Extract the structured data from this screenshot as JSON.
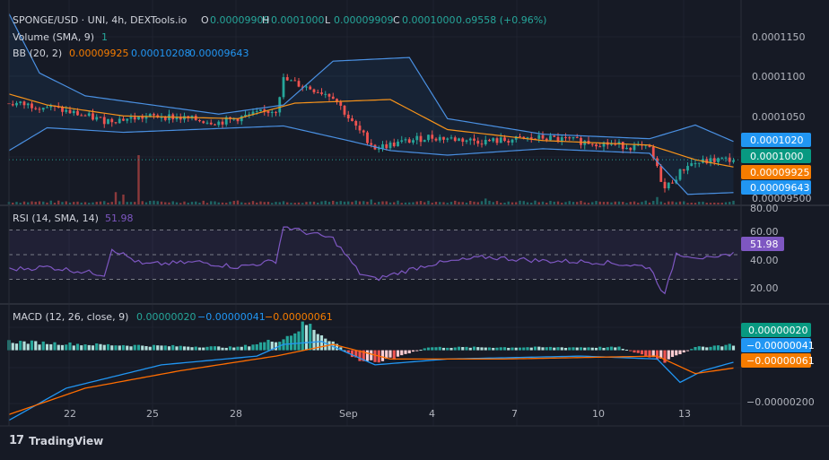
{
  "header": {
    "symbol": "SPONGE/USD · UNI, 4h, DEXTools.io",
    "o_label": "O",
    "o_value": "0.00009909",
    "h_label": "H",
    "h_value": "0.0001000",
    "l_label": "L",
    "l_value": "0.00009909",
    "c_label": "C",
    "c_value": "0.0001000",
    "change": "0.o9558 (+0.96%)",
    "volume_label": "Volume (SMA, 9)",
    "volume_value": "1",
    "bb_label": "BB (20, 2)",
    "bb_basis": "0.00009925",
    "bb_upper": "0.00010208",
    "bb_lower": "0.00009643"
  },
  "colors": {
    "background": "#161a25",
    "up": "#26a69a",
    "down": "#ef5350",
    "bb_band": "#4a90e2",
    "bb_basis": "#f7931a",
    "rsi": "#7e57c2",
    "macd_line": "#2196f3",
    "signal_line": "#ff6d00",
    "hist_up": "#26a69a",
    "hist_up_light": "#b2dfdb",
    "hist_down": "#ef5350",
    "hist_down_light": "#ffcdd2"
  },
  "price_axis": {
    "ticks": [
      "0.0001150",
      "0.0001100",
      "0.0001050",
      "0.00009500"
    ],
    "badges": [
      {
        "text": "0.0001020",
        "color": "#2196f3"
      },
      {
        "text": "0.0001000",
        "color": "#089981"
      },
      {
        "text": "0.00009925",
        "color": "#f57c00"
      },
      {
        "text": "0.00009643",
        "color": "#2196f3"
      }
    ]
  },
  "rsi": {
    "label": "RSI (14, SMA, 14)",
    "value": "51.98",
    "ticks": [
      "80.00",
      "60.00",
      "40.00",
      "20.00"
    ],
    "badge": "51.98"
  },
  "macd": {
    "label": "MACD (12, 26, close, 9)",
    "hist": "0.00000020",
    "macd": "−0.00000041",
    "signal": "−0.00000061",
    "tick": "−0.00000200",
    "badges": [
      {
        "text": "0.00000020",
        "color": "#089981"
      },
      {
        "text": "−0.00000041",
        "color": "#2196f3"
      },
      {
        "text": "−0.00000061",
        "color": "#f57c00"
      }
    ]
  },
  "x_axis": {
    "labels": [
      "22",
      "25",
      "28",
      "Sep",
      "4",
      "7",
      "10",
      "13"
    ]
  },
  "watermark": {
    "logo": "17",
    "text": "TradingView"
  },
  "chart_data": {
    "type": "candlestick",
    "title": "SPONGE/USD · UNI, 4h, DEXTools.io",
    "x_axis_labels": [
      "22",
      "25",
      "28",
      "Sep",
      "4",
      "7",
      "10",
      "13"
    ],
    "price_range": [
      9.5e-05,
      0.0001175
    ],
    "price_key_points": [
      {
        "x": 0,
        "close": 0.0001062
      },
      {
        "x": 10,
        "close": 0.0001058
      },
      {
        "x": 25,
        "close": 0.0001043
      },
      {
        "x": 40,
        "close": 0.0001048
      },
      {
        "x": 55,
        "close": 0.0001041
      },
      {
        "x": 70,
        "close": 0.0001055
      },
      {
        "x": 72,
        "close": 0.0001088
      },
      {
        "x": 85,
        "close": 0.000107
      },
      {
        "x": 90,
        "close": 0.000104
      },
      {
        "x": 96,
        "close": 0.0001013
      },
      {
        "x": 110,
        "close": 0.0001025
      },
      {
        "x": 125,
        "close": 0.000102
      },
      {
        "x": 140,
        "close": 0.0001024
      },
      {
        "x": 158,
        "close": 0.0001017
      },
      {
        "x": 168,
        "close": 0.0001012
      },
      {
        "x": 172,
        "close": 9.68e-05
      },
      {
        "x": 178,
        "close": 9.95e-05
      },
      {
        "x": 186,
        "close": 0.0001
      }
    ],
    "bollinger_upper": [
      {
        "x": 0,
        "v": 0.000116
      },
      {
        "x": 8,
        "v": 0.0001095
      },
      {
        "x": 20,
        "v": 0.000107
      },
      {
        "x": 55,
        "v": 0.000105
      },
      {
        "x": 72,
        "v": 0.000106
      },
      {
        "x": 85,
        "v": 0.0001108
      },
      {
        "x": 105,
        "v": 0.0001112
      },
      {
        "x": 115,
        "v": 0.0001045
      },
      {
        "x": 140,
        "v": 0.0001028
      },
      {
        "x": 168,
        "v": 0.0001023
      },
      {
        "x": 180,
        "v": 0.0001038
      },
      {
        "x": 190,
        "v": 0.000102
      }
    ],
    "bollinger_basis": [
      {
        "x": 0,
        "v": 0.0001072
      },
      {
        "x": 10,
        "v": 0.000106
      },
      {
        "x": 30,
        "v": 0.0001048
      },
      {
        "x": 60,
        "v": 0.0001045
      },
      {
        "x": 75,
        "v": 0.0001062
      },
      {
        "x": 100,
        "v": 0.0001066
      },
      {
        "x": 115,
        "v": 0.0001033
      },
      {
        "x": 140,
        "v": 0.0001021
      },
      {
        "x": 168,
        "v": 0.0001016
      },
      {
        "x": 180,
        "v": 0.0001
      },
      {
        "x": 190,
        "v": 9.92e-05
      }
    ],
    "bollinger_lower": [
      {
        "x": 0,
        "v": 0.000101
      },
      {
        "x": 10,
        "v": 0.0001035
      },
      {
        "x": 30,
        "v": 0.000103
      },
      {
        "x": 60,
        "v": 0.0001035
      },
      {
        "x": 72,
        "v": 0.0001037
      },
      {
        "x": 90,
        "v": 0.000102
      },
      {
        "x": 100,
        "v": 0.000101
      },
      {
        "x": 115,
        "v": 0.0001005
      },
      {
        "x": 140,
        "v": 0.0001012
      },
      {
        "x": 168,
        "v": 0.0001007
      },
      {
        "x": 178,
        "v": 9.62e-05
      },
      {
        "x": 190,
        "v": 9.64e-05
      }
    ],
    "volume_spikes": [
      {
        "x": 34,
        "v": 1.0
      },
      {
        "x": 28,
        "v": 0.25
      },
      {
        "x": 30,
        "v": 0.2
      },
      {
        "x": 60,
        "v": 0.08
      },
      {
        "x": 95,
        "v": 0.1
      },
      {
        "x": 125,
        "v": 0.12
      },
      {
        "x": 170,
        "v": 0.15
      }
    ],
    "rsi": {
      "range": [
        10,
        90
      ],
      "bands": [
        70,
        50,
        30
      ],
      "points": [
        {
          "x": 0,
          "v": 38
        },
        {
          "x": 10,
          "v": 40
        },
        {
          "x": 20,
          "v": 36
        },
        {
          "x": 25,
          "v": 34
        },
        {
          "x": 27,
          "v": 55
        },
        {
          "x": 35,
          "v": 42
        },
        {
          "x": 50,
          "v": 44
        },
        {
          "x": 60,
          "v": 40
        },
        {
          "x": 70,
          "v": 45
        },
        {
          "x": 72,
          "v": 73
        },
        {
          "x": 78,
          "v": 68
        },
        {
          "x": 85,
          "v": 63
        },
        {
          "x": 92,
          "v": 35
        },
        {
          "x": 96,
          "v": 30
        },
        {
          "x": 110,
          "v": 42
        },
        {
          "x": 125,
          "v": 48
        },
        {
          "x": 140,
          "v": 45
        },
        {
          "x": 155,
          "v": 44
        },
        {
          "x": 168,
          "v": 40
        },
        {
          "x": 172,
          "v": 17
        },
        {
          "x": 175,
          "v": 51
        },
        {
          "x": 185,
          "v": 46
        },
        {
          "x": 190,
          "v": 51.98
        }
      ]
    },
    "macd": {
      "range": [
        -2.5e-06,
        1.4e-06
      ],
      "macd_line": [
        {
          "x": 0,
          "v": -2.4e-06
        },
        {
          "x": 15,
          "v": -1.3e-06
        },
        {
          "x": 40,
          "v": -5e-07
        },
        {
          "x": 65,
          "v": -2e-07
        },
        {
          "x": 72,
          "v": 2e-07
        },
        {
          "x": 82,
          "v": 3e-07
        },
        {
          "x": 96,
          "v": -5e-07
        },
        {
          "x": 115,
          "v": -3e-07
        },
        {
          "x": 150,
          "v": -2e-07
        },
        {
          "x": 170,
          "v": -3e-07
        },
        {
          "x": 176,
          "v": -1.1e-06
        },
        {
          "x": 182,
          "v": -7e-07
        },
        {
          "x": 190,
          "v": -4.1e-07
        }
      ],
      "signal_line": [
        {
          "x": 0,
          "v": -2.2e-06
        },
        {
          "x": 20,
          "v": -1.3e-06
        },
        {
          "x": 45,
          "v": -7e-07
        },
        {
          "x": 70,
          "v": -2e-07
        },
        {
          "x": 85,
          "v": 2e-07
        },
        {
          "x": 100,
          "v": -3e-07
        },
        {
          "x": 130,
          "v": -3e-07
        },
        {
          "x": 170,
          "v": -2e-07
        },
        {
          "x": 180,
          "v": -8e-07
        },
        {
          "x": 190,
          "v": -6.1e-07
        }
      ],
      "histogram_envelope": [
        {
          "x": 0,
          "v": 3e-07
        },
        {
          "x": 20,
          "v": 2e-07
        },
        {
          "x": 60,
          "v": 1e-07
        },
        {
          "x": 72,
          "v": 4e-07
        },
        {
          "x": 78,
          "v": 9e-07
        },
        {
          "x": 85,
          "v": 3e-07
        },
        {
          "x": 92,
          "v": -4e-07
        },
        {
          "x": 100,
          "v": -3e-07
        },
        {
          "x": 110,
          "v": 1e-07
        },
        {
          "x": 160,
          "v": 1e-07
        },
        {
          "x": 172,
          "v": -4e-07
        },
        {
          "x": 180,
          "v": 1e-07
        },
        {
          "x": 190,
          "v": 2e-07
        }
      ]
    }
  }
}
